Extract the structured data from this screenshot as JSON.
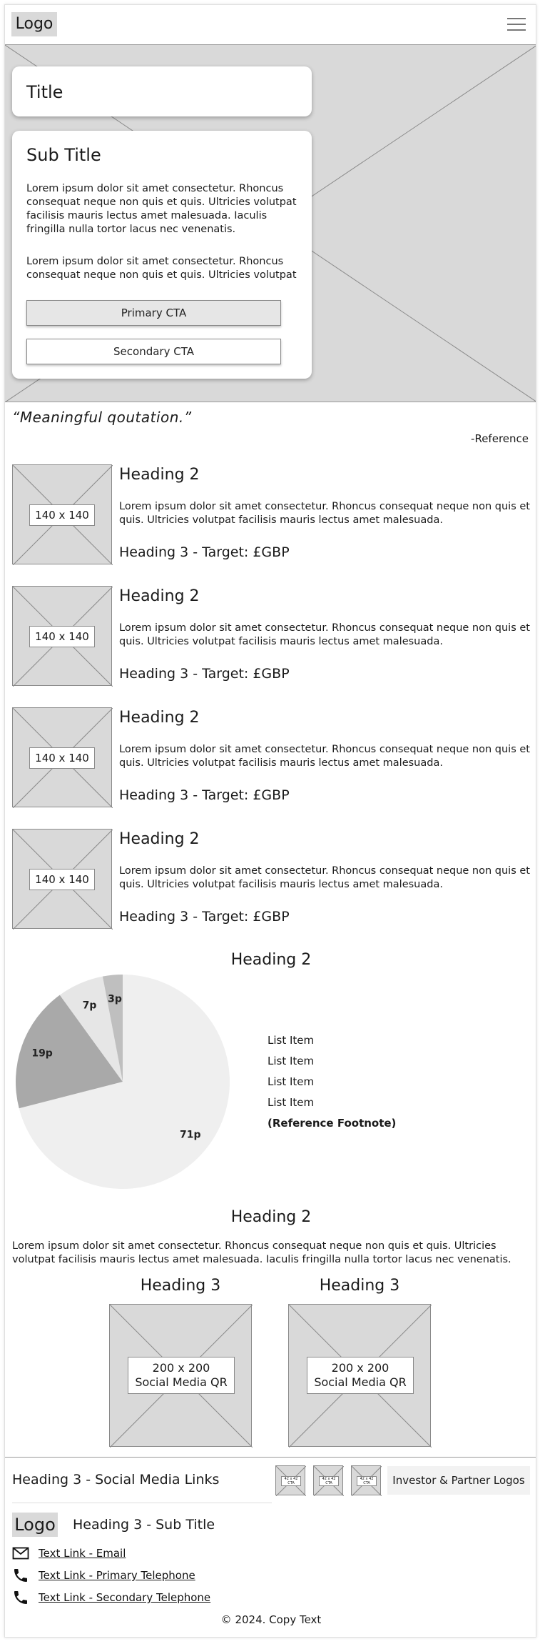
{
  "header": {
    "logo": "Logo"
  },
  "hero": {
    "title": "Title",
    "subtitle": "Sub Title",
    "paragraph1": "Lorem ipsum dolor sit amet consectetur. Rhoncus consequat neque non quis et quis. Ultricies volutpat facilisis mauris lectus amet malesuada. Iaculis fringilla nulla tortor lacus nec venenatis.",
    "paragraph2": "Lorem ipsum dolor sit amet consectetur. Rhoncus consequat neque non quis et quis. Ultricies volutpat",
    "primary_cta": "Primary CTA",
    "secondary_cta": "Secondary CTA"
  },
  "quote": {
    "text": "“Meaningful qoutation.”",
    "reference": "-Reference"
  },
  "items": [
    {
      "thumb": "140 x 140",
      "heading": "Heading 2",
      "text": "Lorem ipsum dolor sit amet consectetur. Rhoncus consequat neque non quis et quis. Ultricies volutpat facilisis mauris lectus amet malesuada.",
      "subheading": "Heading 3 - Target: £GBP"
    },
    {
      "thumb": "140 x 140",
      "heading": "Heading 2",
      "text": "Lorem ipsum dolor sit amet consectetur. Rhoncus consequat neque non quis et quis. Ultricies volutpat facilisis mauris lectus amet malesuada.",
      "subheading": "Heading 3 - Target: £GBP"
    },
    {
      "thumb": "140 x 140",
      "heading": "Heading 2",
      "text": "Lorem ipsum dolor sit amet consectetur. Rhoncus consequat neque non quis et quis. Ultricies volutpat facilisis mauris lectus amet malesuada.",
      "subheading": "Heading 3 - Target: £GBP"
    },
    {
      "thumb": "140 x 140",
      "heading": "Heading 2",
      "text": "Lorem ipsum dolor sit amet consectetur. Rhoncus consequat neque non quis et quis. Ultricies volutpat facilisis mauris lectus amet malesuada.",
      "subheading": "Heading 3 - Target: £GBP"
    }
  ],
  "chart_section": {
    "heading": "Heading 2",
    "list": [
      "List Item",
      "List Item",
      "List Item",
      "List Item"
    ],
    "footnote": "(Reference Footnote)"
  },
  "chart_data": {
    "type": "pie",
    "title": "",
    "slices": [
      {
        "label": "71p",
        "value": 71,
        "color": "#efefef"
      },
      {
        "label": "19p",
        "value": 19,
        "color": "#a9a9a9"
      },
      {
        "label": "7p",
        "value": 7,
        "color": "#e6e6e6"
      },
      {
        "label": "3p",
        "value": 3,
        "color": "#bfbfbf"
      }
    ]
  },
  "qr_section": {
    "heading": "Heading 2",
    "text": "Lorem ipsum dolor sit amet consectetur. Rhoncus consequat neque non quis et quis. Ultricies volutpat facilisis mauris lectus amet malesuada. Iaculis fringilla nulla tortor lacus nec venenatis.",
    "columns": [
      {
        "heading": "Heading 3",
        "qr_label_1": "200 x 200",
        "qr_label_2": "Social Media QR"
      },
      {
        "heading": "Heading 3",
        "qr_label_1": "200 x 200",
        "qr_label_2": "Social Media QR"
      }
    ]
  },
  "social": {
    "heading": "Heading 3 - Social Media Links",
    "icons": [
      {
        "label_1": "42 x 42",
        "label_2": "CTA"
      },
      {
        "label_1": "42 x 42",
        "label_2": "CTA"
      },
      {
        "label_1": "42 x 42",
        "label_2": "CTA"
      }
    ],
    "partners": "Investor & Partner Logos"
  },
  "footer": {
    "logo": "Logo",
    "subtitle": "Heading 3 - Sub Title",
    "links": [
      {
        "icon": "envelope-icon",
        "text": "Text Link - Email"
      },
      {
        "icon": "phone-icon",
        "text": "Text Link - Primary Telephone"
      },
      {
        "icon": "phone-icon",
        "text": "Text Link - Secondary Telephone"
      }
    ],
    "copyright": "© 2024. Copy Text"
  }
}
